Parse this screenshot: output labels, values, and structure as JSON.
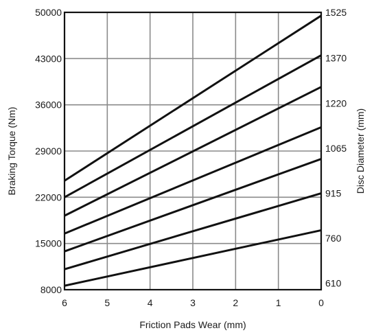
{
  "chart_data": {
    "type": "line",
    "title": "",
    "xlabel": "Friction Pads Wear (mm)",
    "ylabel": "Braking Torque (Nm)",
    "y2label": "Disc Diameter (mm)",
    "x_ticks": [
      "6",
      "5",
      "4",
      "3",
      "2",
      "1",
      "0"
    ],
    "y_ticks": [
      "8000",
      "15000",
      "22000",
      "29000",
      "36000",
      "43000",
      "50000"
    ],
    "x_reversed": true,
    "xlim": [
      0,
      6
    ],
    "ylim": [
      8000,
      50000
    ],
    "grid": true,
    "colors": {
      "lines": "#111111",
      "grid": "#8a8a8a",
      "frame": "#111111"
    },
    "series": [
      {
        "name": "1525",
        "x": [
          6,
          0
        ],
        "y": [
          24500,
          49500
        ]
      },
      {
        "name": "1370",
        "x": [
          6,
          0
        ],
        "y": [
          22000,
          43500
        ]
      },
      {
        "name": "1220",
        "x": [
          6,
          0
        ],
        "y": [
          19200,
          38700
        ]
      },
      {
        "name": "1065",
        "x": [
          6,
          0
        ],
        "y": [
          16500,
          32600
        ]
      },
      {
        "name": "915",
        "x": [
          6,
          0
        ],
        "y": [
          13800,
          27800
        ]
      },
      {
        "name": "760",
        "x": [
          6,
          0
        ],
        "y": [
          11100,
          22600
        ]
      },
      {
        "name": "610",
        "x": [
          6,
          0
        ],
        "y": [
          8600,
          17000
        ]
      }
    ],
    "right_labels": [
      {
        "text": "1525",
        "y": 50000
      },
      {
        "text": "1370",
        "y": 43100
      },
      {
        "text": "1220",
        "y": 36200
      },
      {
        "text": "1065",
        "y": 29400
      },
      {
        "text": "915",
        "y": 22600
      },
      {
        "text": "760",
        "y": 15800
      },
      {
        "text": "610",
        "y": 9000
      }
    ]
  }
}
